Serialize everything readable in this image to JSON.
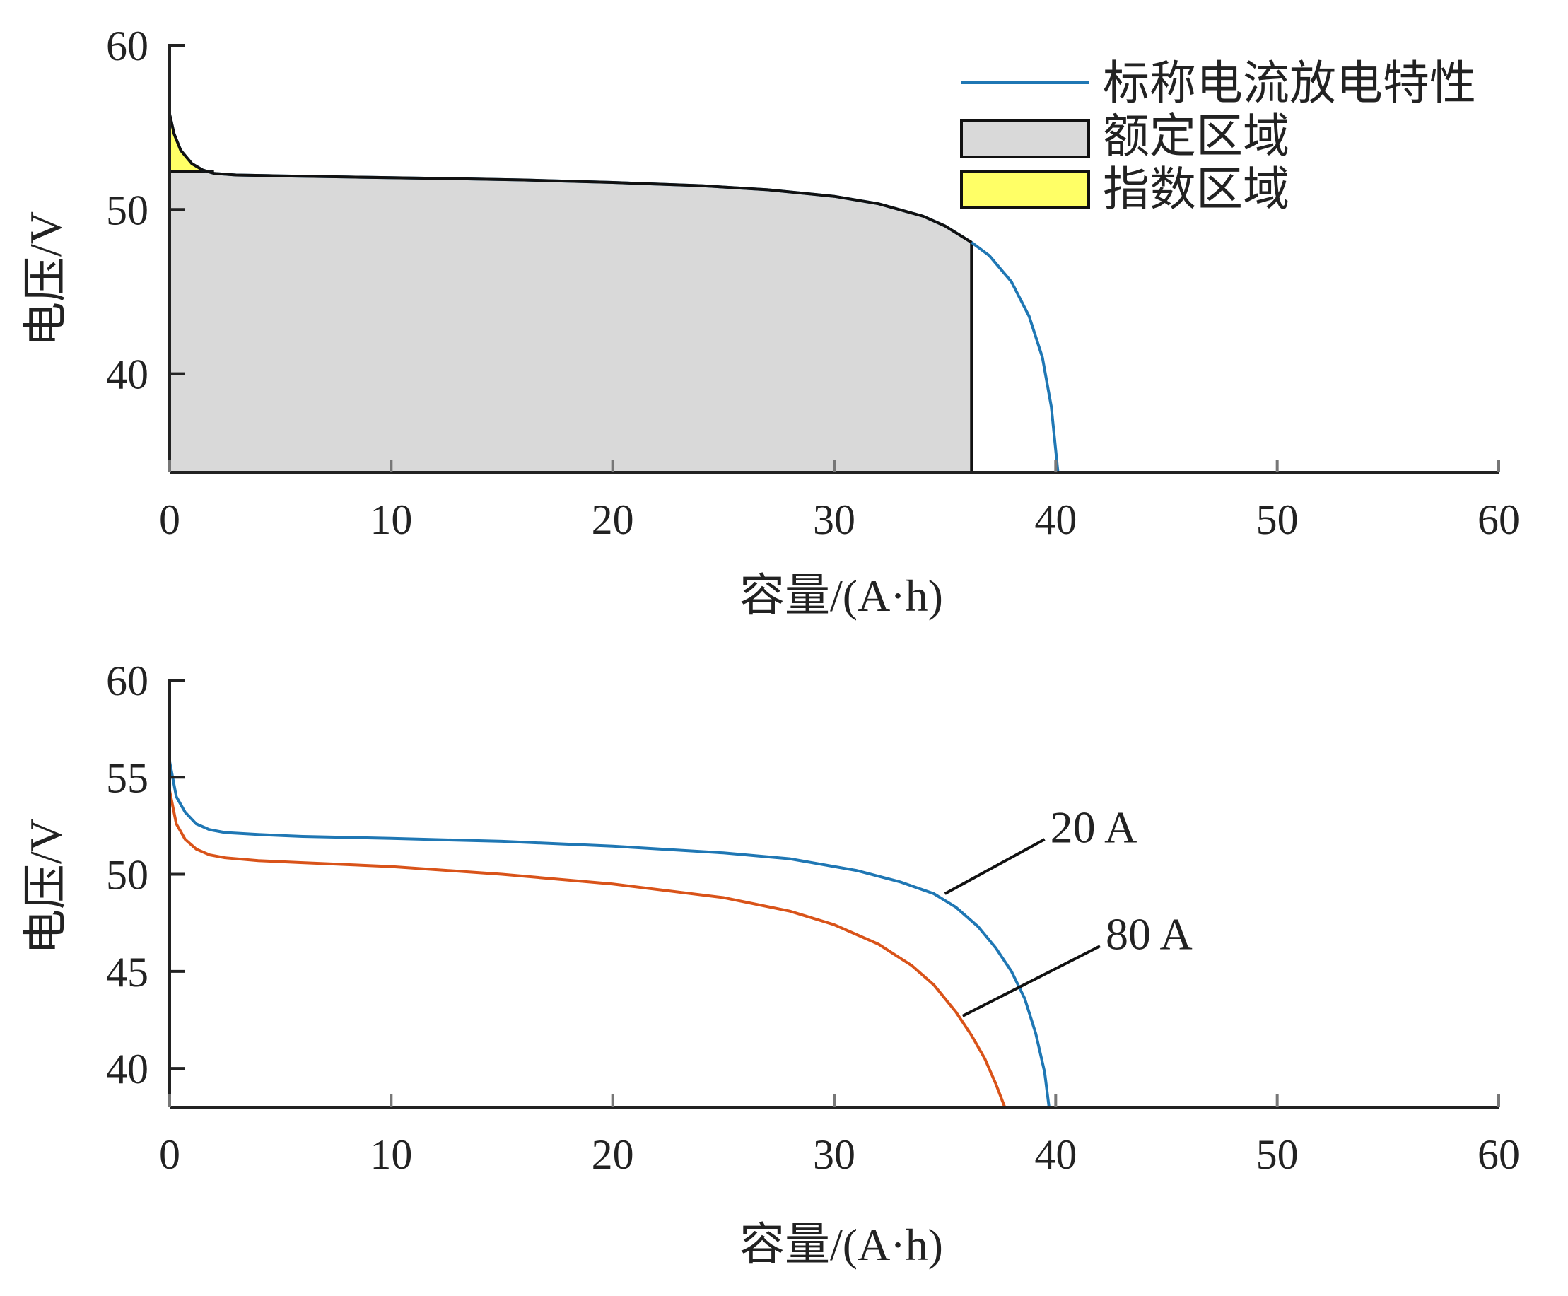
{
  "chart_data": [
    {
      "type": "area",
      "xlabel": "容量/(A·h)",
      "ylabel": "电压/V",
      "xlim": [
        0,
        60
      ],
      "ylim": [
        34,
        60
      ],
      "xticks": [
        0,
        10,
        20,
        30,
        40,
        50,
        60
      ],
      "xtick_labels": [
        "0",
        "10",
        "20",
        "30",
        "40",
        "50",
        "60"
      ],
      "yticks": [
        40,
        50,
        60
      ],
      "ytick_labels": [
        "40",
        "50",
        "60"
      ],
      "legend_position": "top-right",
      "legend": [
        {
          "label": "标称电流放电特性",
          "kind": "line",
          "color": "#1f77b4"
        },
        {
          "label": "额定区域",
          "kind": "patch",
          "color": "#d9d9d9"
        },
        {
          "label": "指数区域",
          "kind": "patch",
          "color": "#ffff66"
        }
      ],
      "series": [
        {
          "name": "标称电流放电特性",
          "color": "#1f77b4",
          "x": [
            0,
            0.2,
            0.5,
            1.0,
            1.5,
            2.0,
            3,
            5,
            8,
            12,
            16,
            20,
            24,
            27,
            30,
            32,
            34,
            35,
            36.2,
            37,
            38,
            38.8,
            39.4,
            39.8,
            40.1
          ],
          "y": [
            55.8,
            54.6,
            53.6,
            52.8,
            52.4,
            52.2,
            52.1,
            52.05,
            51.98,
            51.9,
            51.8,
            51.65,
            51.45,
            51.2,
            50.8,
            50.35,
            49.6,
            49.0,
            48.0,
            47.2,
            45.6,
            43.5,
            41.0,
            38.0,
            34.0
          ]
        }
      ],
      "regions": [
        {
          "name": "额定区域",
          "x_range": [
            0,
            36.2
          ],
          "color": "#d9d9d9"
        },
        {
          "name": "指数区域",
          "x_range": [
            0,
            2.0
          ],
          "y_floor": 52.3,
          "color": "#ffff66"
        }
      ]
    },
    {
      "type": "line",
      "xlabel": "容量/(A·h)",
      "ylabel": "电压/V",
      "xlim": [
        0,
        60
      ],
      "ylim": [
        38,
        60
      ],
      "xticks": [
        0,
        10,
        20,
        30,
        40,
        50,
        60
      ],
      "xtick_labels": [
        "0",
        "10",
        "20",
        "30",
        "40",
        "50",
        "60"
      ],
      "yticks": [
        40,
        45,
        50,
        55,
        60
      ],
      "ytick_labels": [
        "40",
        "45",
        "50",
        "55",
        "60"
      ],
      "series": [
        {
          "name": "20 A",
          "color": "#1f77b4",
          "label_anchor": [
            35,
            49
          ],
          "label_pos": [
            39.5,
            52
          ],
          "x": [
            0,
            0.3,
            0.7,
            1.2,
            1.8,
            2.5,
            4,
            6,
            10,
            15,
            20,
            25,
            28,
            31,
            33,
            34.5,
            35.5,
            36.5,
            37.3,
            38,
            38.6,
            39.1,
            39.5,
            39.7
          ],
          "y": [
            55.8,
            54.0,
            53.2,
            52.6,
            52.3,
            52.15,
            52.05,
            51.95,
            51.85,
            51.7,
            51.45,
            51.1,
            50.8,
            50.2,
            49.6,
            49.0,
            48.3,
            47.3,
            46.2,
            45.0,
            43.6,
            41.8,
            39.8,
            38.0
          ]
        },
        {
          "name": "80 A",
          "color": "#d95319",
          "label_anchor": [
            35.8,
            42.7
          ],
          "label_pos": [
            42,
            46.5
          ],
          "x": [
            0,
            0.3,
            0.7,
            1.2,
            1.8,
            2.5,
            4,
            6,
            10,
            15,
            20,
            25,
            28,
            30,
            32,
            33.5,
            34.5,
            35.5,
            36.2,
            36.8,
            37.3,
            37.7
          ],
          "y": [
            54.3,
            52.6,
            51.8,
            51.3,
            51.0,
            50.85,
            50.7,
            50.6,
            50.4,
            50.0,
            49.5,
            48.8,
            48.1,
            47.4,
            46.4,
            45.3,
            44.3,
            42.9,
            41.7,
            40.5,
            39.2,
            38.0
          ]
        }
      ]
    }
  ]
}
